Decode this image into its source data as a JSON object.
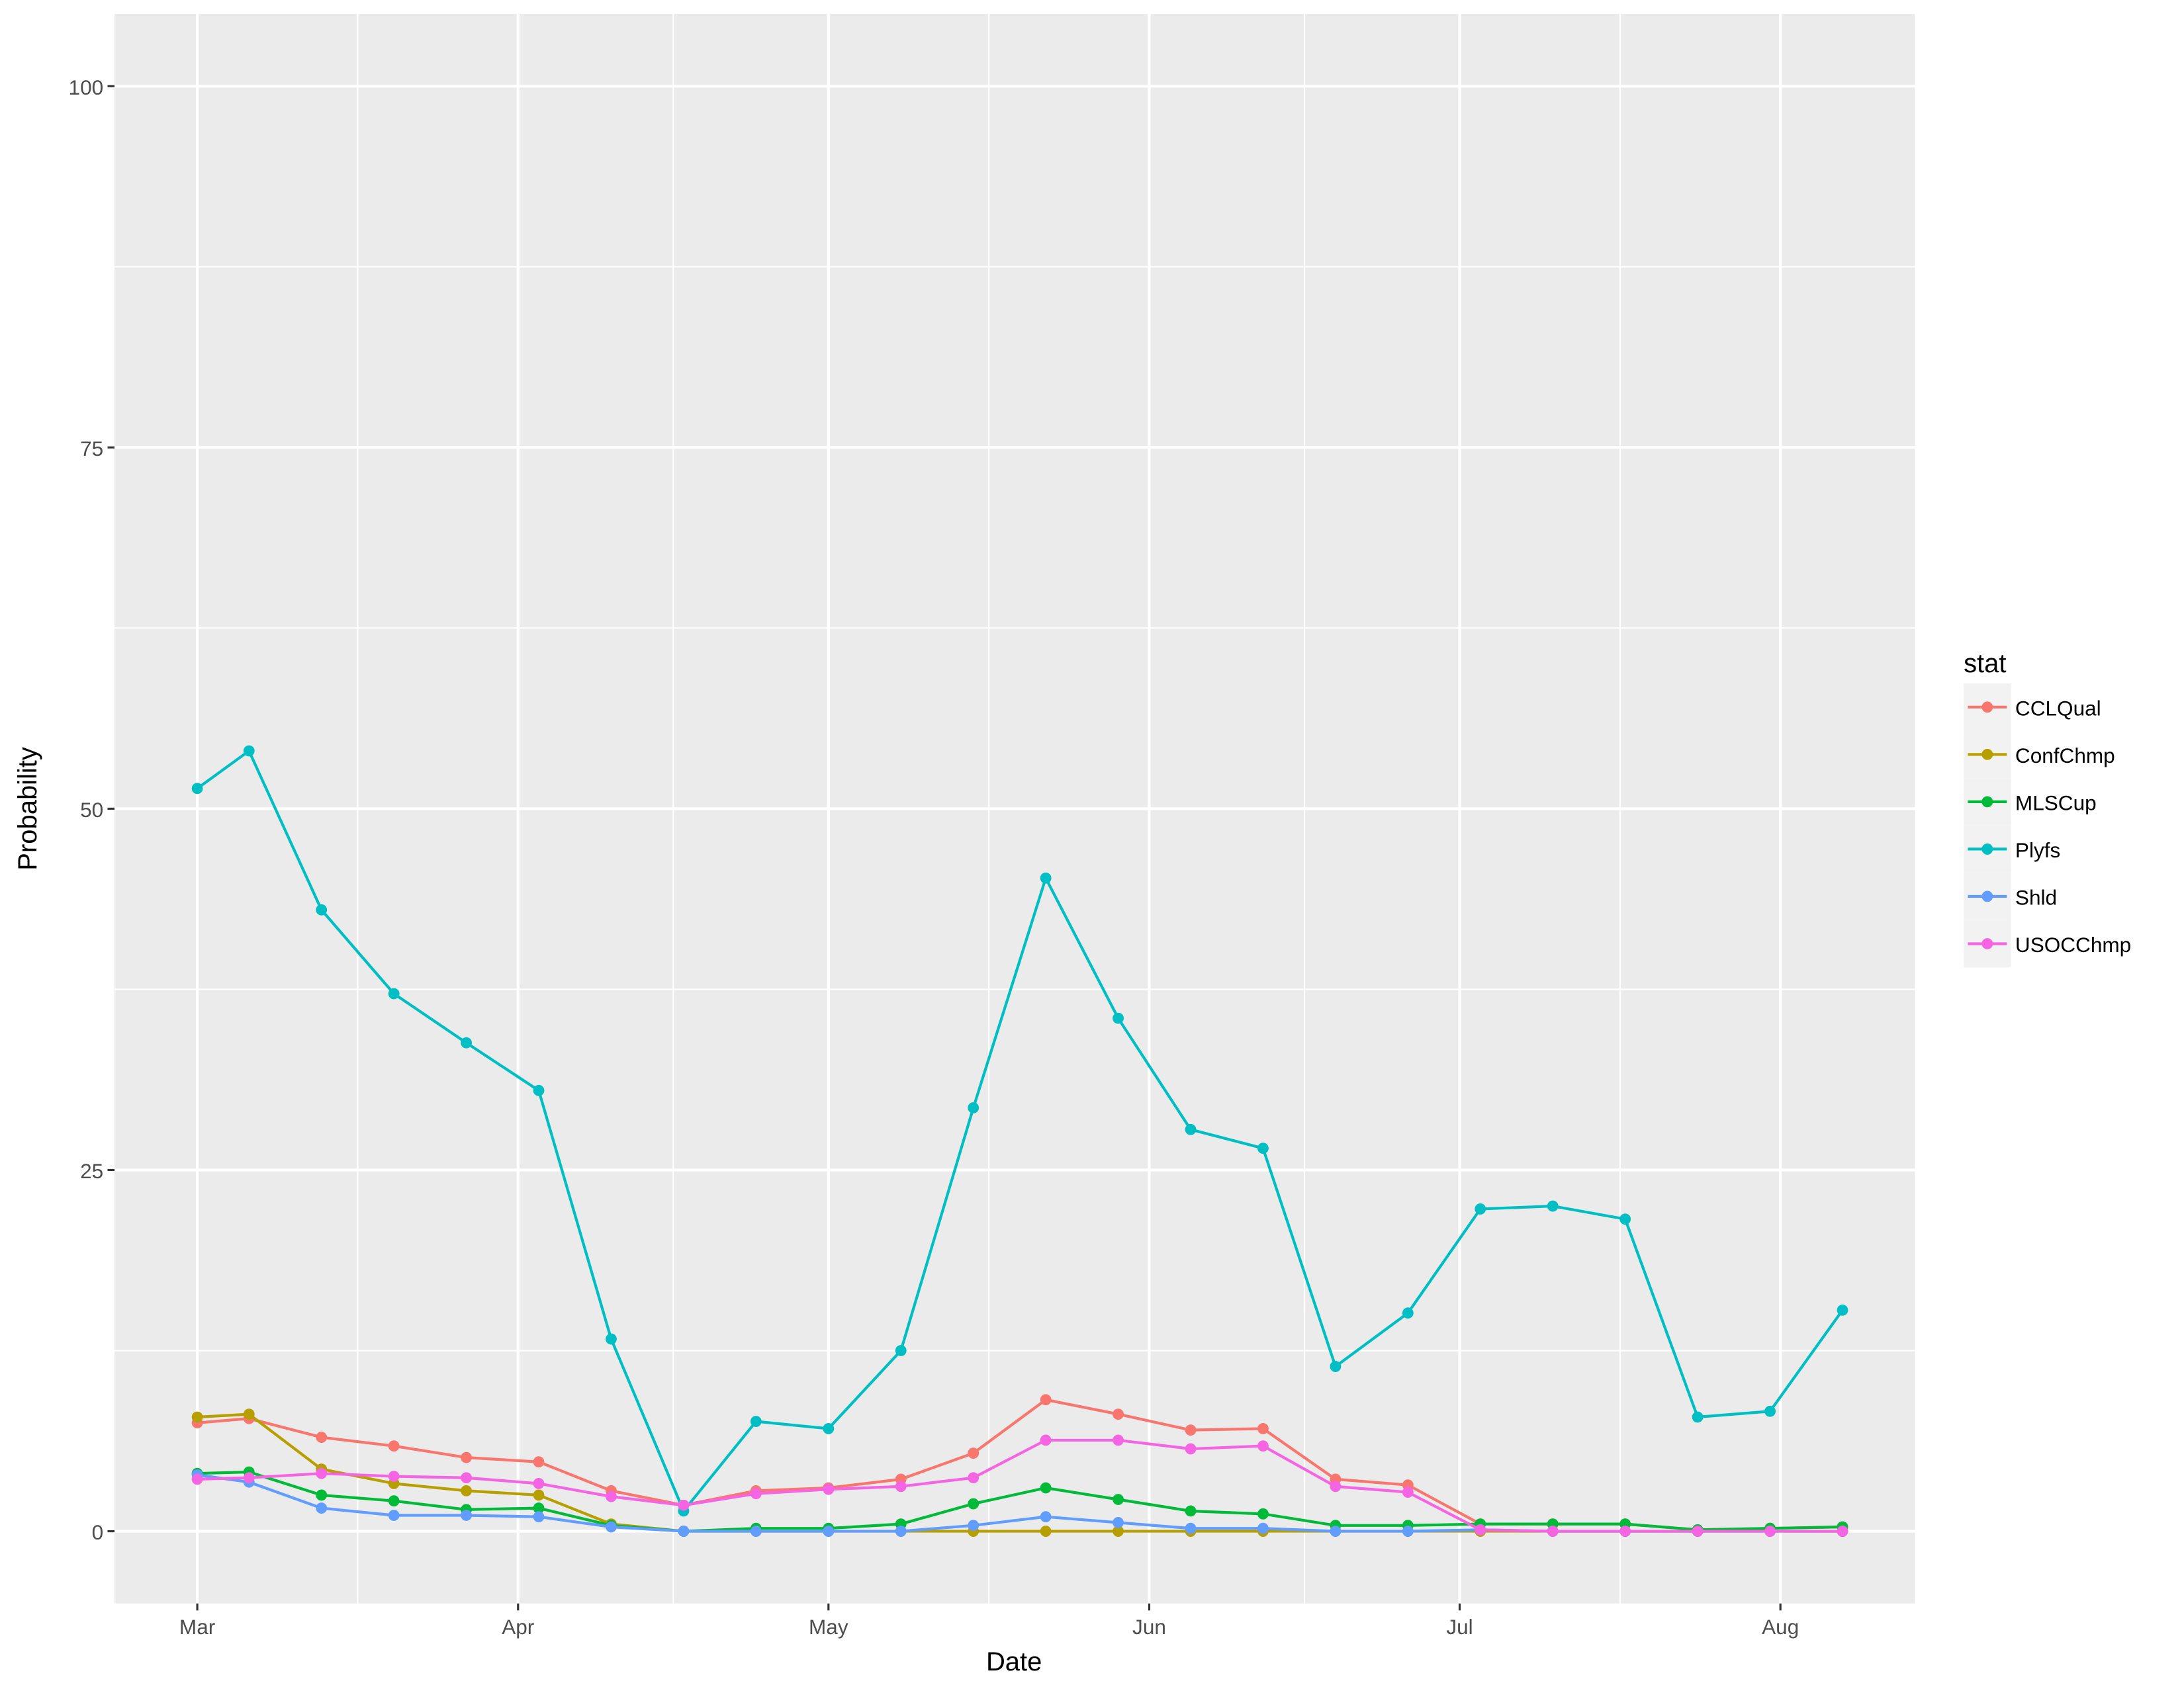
{
  "chart_data": {
    "type": "line",
    "xlabel": "Date",
    "ylabel": "Probability",
    "ylim": [
      -5,
      105
    ],
    "y_ticks": [
      0,
      25,
      50,
      75,
      100
    ],
    "x_ticks": [
      {
        "label": "Mar",
        "date": "2016-03-01"
      },
      {
        "label": "Apr",
        "date": "2016-04-01"
      },
      {
        "label": "May",
        "date": "2016-05-01"
      },
      {
        "label": "Jun",
        "date": "2016-06-01"
      },
      {
        "label": "Jul",
        "date": "2016-07-01"
      },
      {
        "label": "Aug",
        "date": "2016-08-01"
      }
    ],
    "xlim": [
      "2016-02-22",
      "2016-08-14"
    ],
    "grid": true,
    "legend_title": "stat",
    "legend_position": "right",
    "x": [
      "2016-03-01",
      "2016-03-06",
      "2016-03-13",
      "2016-03-20",
      "2016-03-27",
      "2016-04-03",
      "2016-04-10",
      "2016-04-17",
      "2016-04-24",
      "2016-05-01",
      "2016-05-08",
      "2016-05-15",
      "2016-05-22",
      "2016-05-29",
      "2016-06-05",
      "2016-06-12",
      "2016-06-19",
      "2016-06-26",
      "2016-07-03",
      "2016-07-10",
      "2016-07-17",
      "2016-07-24",
      "2016-07-31",
      "2016-08-07"
    ],
    "series": [
      {
        "name": "CCLQual",
        "color": "#F8766D",
        "values": [
          7.5,
          7.8,
          6.5,
          5.9,
          5.1,
          4.8,
          2.8,
          1.8,
          2.8,
          3.0,
          3.6,
          5.4,
          9.1,
          8.1,
          7.0,
          7.1,
          3.6,
          3.2,
          0.5,
          0.5,
          0.5,
          0.1,
          0.2,
          0.3
        ]
      },
      {
        "name": "ConfChmp",
        "color": "#B79F00",
        "values": [
          7.9,
          8.1,
          4.3,
          3.3,
          2.8,
          2.5,
          0.5,
          0,
          0,
          0,
          0,
          0,
          0,
          0,
          0,
          0,
          0,
          0,
          0,
          0,
          0,
          0,
          0,
          0
        ]
      },
      {
        "name": "MLSCup",
        "color": "#00BA38",
        "values": [
          4.0,
          4.1,
          2.5,
          2.1,
          1.5,
          1.6,
          0.4,
          0,
          0.2,
          0.2,
          0.5,
          1.9,
          3.0,
          2.2,
          1.4,
          1.2,
          0.4,
          0.4,
          0.5,
          0.5,
          0.5,
          0.1,
          0.2,
          0.3
        ]
      },
      {
        "name": "Plyfs",
        "color": "#00BFC4",
        "values": [
          51.4,
          54.0,
          43.0,
          37.2,
          33.8,
          30.5,
          13.3,
          1.4,
          7.6,
          7.1,
          12.5,
          29.3,
          45.2,
          35.5,
          27.8,
          26.5,
          11.4,
          15.1,
          22.3,
          22.5,
          21.6,
          7.9,
          8.3,
          15.3
        ]
      },
      {
        "name": "Shld",
        "color": "#619CFF",
        "values": [
          3.9,
          3.4,
          1.6,
          1.1,
          1.1,
          1.0,
          0.3,
          0,
          0,
          0,
          0,
          0.4,
          1.0,
          0.6,
          0.2,
          0.2,
          0,
          0,
          0.1,
          0,
          0,
          0,
          0,
          0
        ]
      },
      {
        "name": "USOCChmp",
        "color": "#F564E3",
        "values": [
          3.6,
          3.7,
          4.0,
          3.8,
          3.7,
          3.3,
          2.4,
          1.8,
          2.6,
          2.9,
          3.1,
          3.7,
          6.3,
          6.3,
          5.7,
          5.9,
          3.1,
          2.7,
          0.1,
          0,
          0,
          0,
          0,
          0
        ]
      }
    ]
  }
}
